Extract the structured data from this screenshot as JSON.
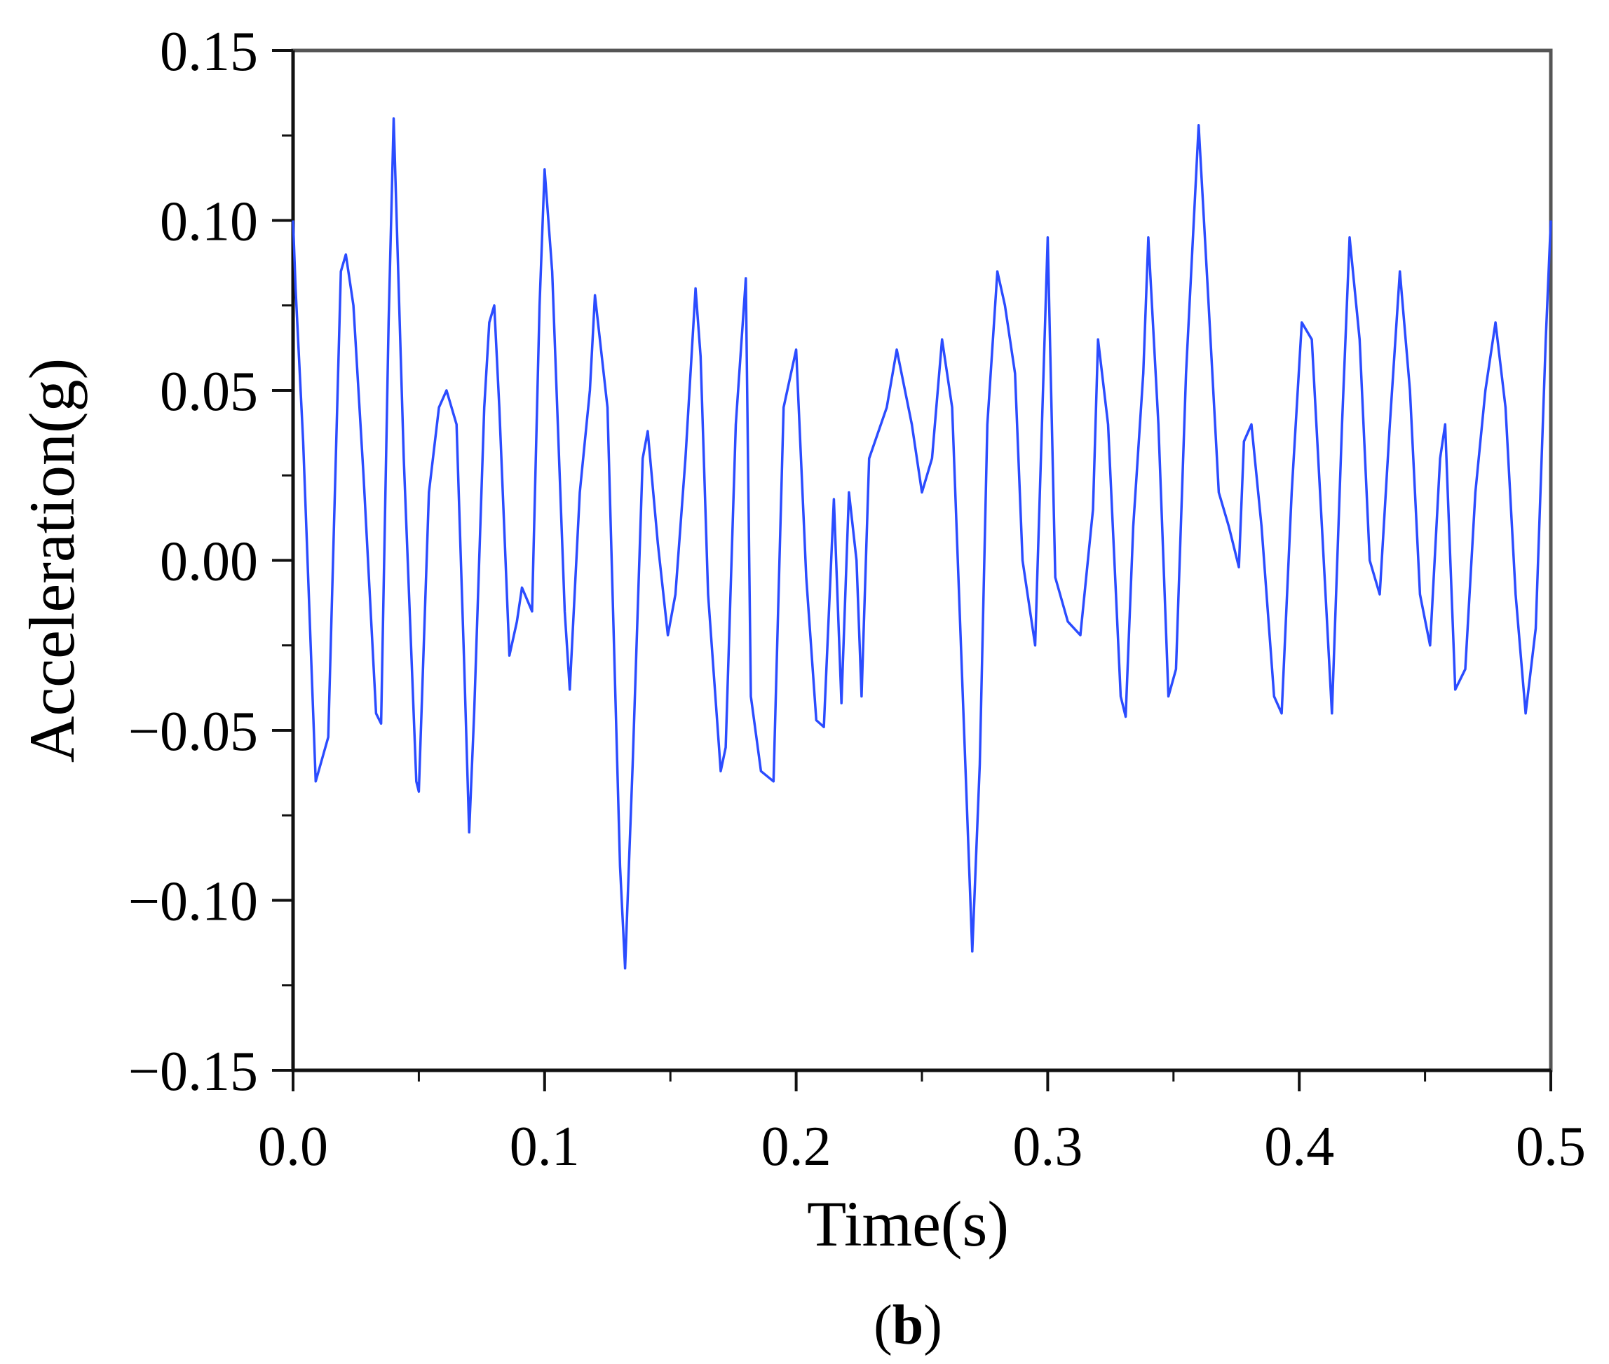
{
  "chart_data": {
    "type": "line",
    "title": "",
    "xlabel": "Time(s)",
    "ylabel": "Acceleration(g)",
    "panel_label": "(b)",
    "xlim": [
      0,
      0.5
    ],
    "ylim": [
      -0.15,
      0.15
    ],
    "x_ticks": [
      0.0,
      0.1,
      0.2,
      0.3,
      0.4,
      0.5
    ],
    "x_tick_labels": [
      "0.0",
      "0.1",
      "0.2",
      "0.3",
      "0.4",
      "0.5"
    ],
    "y_ticks": [
      -0.15,
      -0.1,
      -0.05,
      0.0,
      0.05,
      0.1,
      0.15
    ],
    "y_tick_labels": [
      "−0.15",
      "−0.10",
      "−0.05",
      "0.00",
      "0.05",
      "0.10",
      "0.15"
    ],
    "grid": false,
    "legend": "none",
    "line_color": "#2b4cff",
    "series": [
      {
        "x": [
          0.0,
          0.001,
          0.004,
          0.009,
          0.014,
          0.019,
          0.021,
          0.024,
          0.028,
          0.033,
          0.035,
          0.038,
          0.04,
          0.044,
          0.049,
          0.05,
          0.054,
          0.058,
          0.061,
          0.065,
          0.068,
          0.07,
          0.072,
          0.076,
          0.078,
          0.08,
          0.082,
          0.086,
          0.089,
          0.091,
          0.095,
          0.098,
          0.1,
          0.103,
          0.108,
          0.11,
          0.114,
          0.118,
          0.12,
          0.125,
          0.13,
          0.132,
          0.135,
          0.139,
          0.141,
          0.145,
          0.149,
          0.152,
          0.156,
          0.16,
          0.162,
          0.165,
          0.17,
          0.172,
          0.176,
          0.18,
          0.182,
          0.186,
          0.191,
          0.195,
          0.2,
          0.204,
          0.208,
          0.211,
          0.215,
          0.218,
          0.221,
          0.224,
          0.226,
          0.229,
          0.236,
          0.24,
          0.246,
          0.25,
          0.254,
          0.258,
          0.262,
          0.267,
          0.27,
          0.273,
          0.276,
          0.28,
          0.283,
          0.287,
          0.29,
          0.295,
          0.3,
          0.303,
          0.308,
          0.313,
          0.318,
          0.32,
          0.324,
          0.329,
          0.331,
          0.334,
          0.338,
          0.34,
          0.344,
          0.348,
          0.351,
          0.355,
          0.36,
          0.364,
          0.368,
          0.372,
          0.376,
          0.378,
          0.381,
          0.385,
          0.39,
          0.393,
          0.397,
          0.401,
          0.405,
          0.409,
          0.413,
          0.417,
          0.42,
          0.424,
          0.428,
          0.432,
          0.436,
          0.44,
          0.444,
          0.448,
          0.452,
          0.456,
          0.458,
          0.462,
          0.466,
          0.47,
          0.474,
          0.478,
          0.482,
          0.486,
          0.49,
          0.494,
          0.498,
          0.5
        ],
        "y": [
          0.1,
          0.08,
          0.035,
          -0.065,
          -0.052,
          0.085,
          0.09,
          0.075,
          0.025,
          -0.045,
          -0.048,
          0.07,
          0.13,
          0.03,
          -0.065,
          -0.068,
          0.02,
          0.045,
          0.05,
          0.04,
          -0.03,
          -0.08,
          -0.045,
          0.045,
          0.07,
          0.075,
          0.045,
          -0.028,
          -0.018,
          -0.008,
          -0.015,
          0.075,
          0.115,
          0.085,
          -0.015,
          -0.038,
          0.02,
          0.05,
          0.078,
          0.045,
          -0.09,
          -0.12,
          -0.06,
          0.03,
          0.038,
          0.005,
          -0.022,
          -0.01,
          0.03,
          0.08,
          0.06,
          -0.01,
          -0.062,
          -0.055,
          0.04,
          0.083,
          -0.04,
          -0.062,
          -0.065,
          0.045,
          0.062,
          -0.005,
          -0.047,
          -0.049,
          0.018,
          -0.042,
          0.02,
          0.0,
          -0.04,
          0.03,
          0.045,
          0.062,
          0.04,
          0.02,
          0.03,
          0.065,
          0.045,
          -0.055,
          -0.115,
          -0.06,
          0.04,
          0.085,
          0.075,
          0.055,
          0.0,
          -0.025,
          0.095,
          -0.005,
          -0.018,
          -0.022,
          0.015,
          0.065,
          0.04,
          -0.04,
          -0.046,
          0.01,
          0.055,
          0.095,
          0.04,
          -0.04,
          -0.032,
          0.055,
          0.128,
          0.075,
          0.02,
          0.01,
          -0.002,
          0.035,
          0.04,
          0.01,
          -0.04,
          -0.045,
          0.02,
          0.07,
          0.065,
          0.01,
          -0.045,
          0.04,
          0.095,
          0.065,
          0.0,
          -0.01,
          0.04,
          0.085,
          0.05,
          -0.01,
          -0.025,
          0.03,
          0.04,
          -0.038,
          -0.032,
          0.02,
          0.05,
          0.07,
          0.045,
          -0.01,
          -0.045,
          -0.02,
          0.065,
          0.1
        ]
      }
    ]
  }
}
